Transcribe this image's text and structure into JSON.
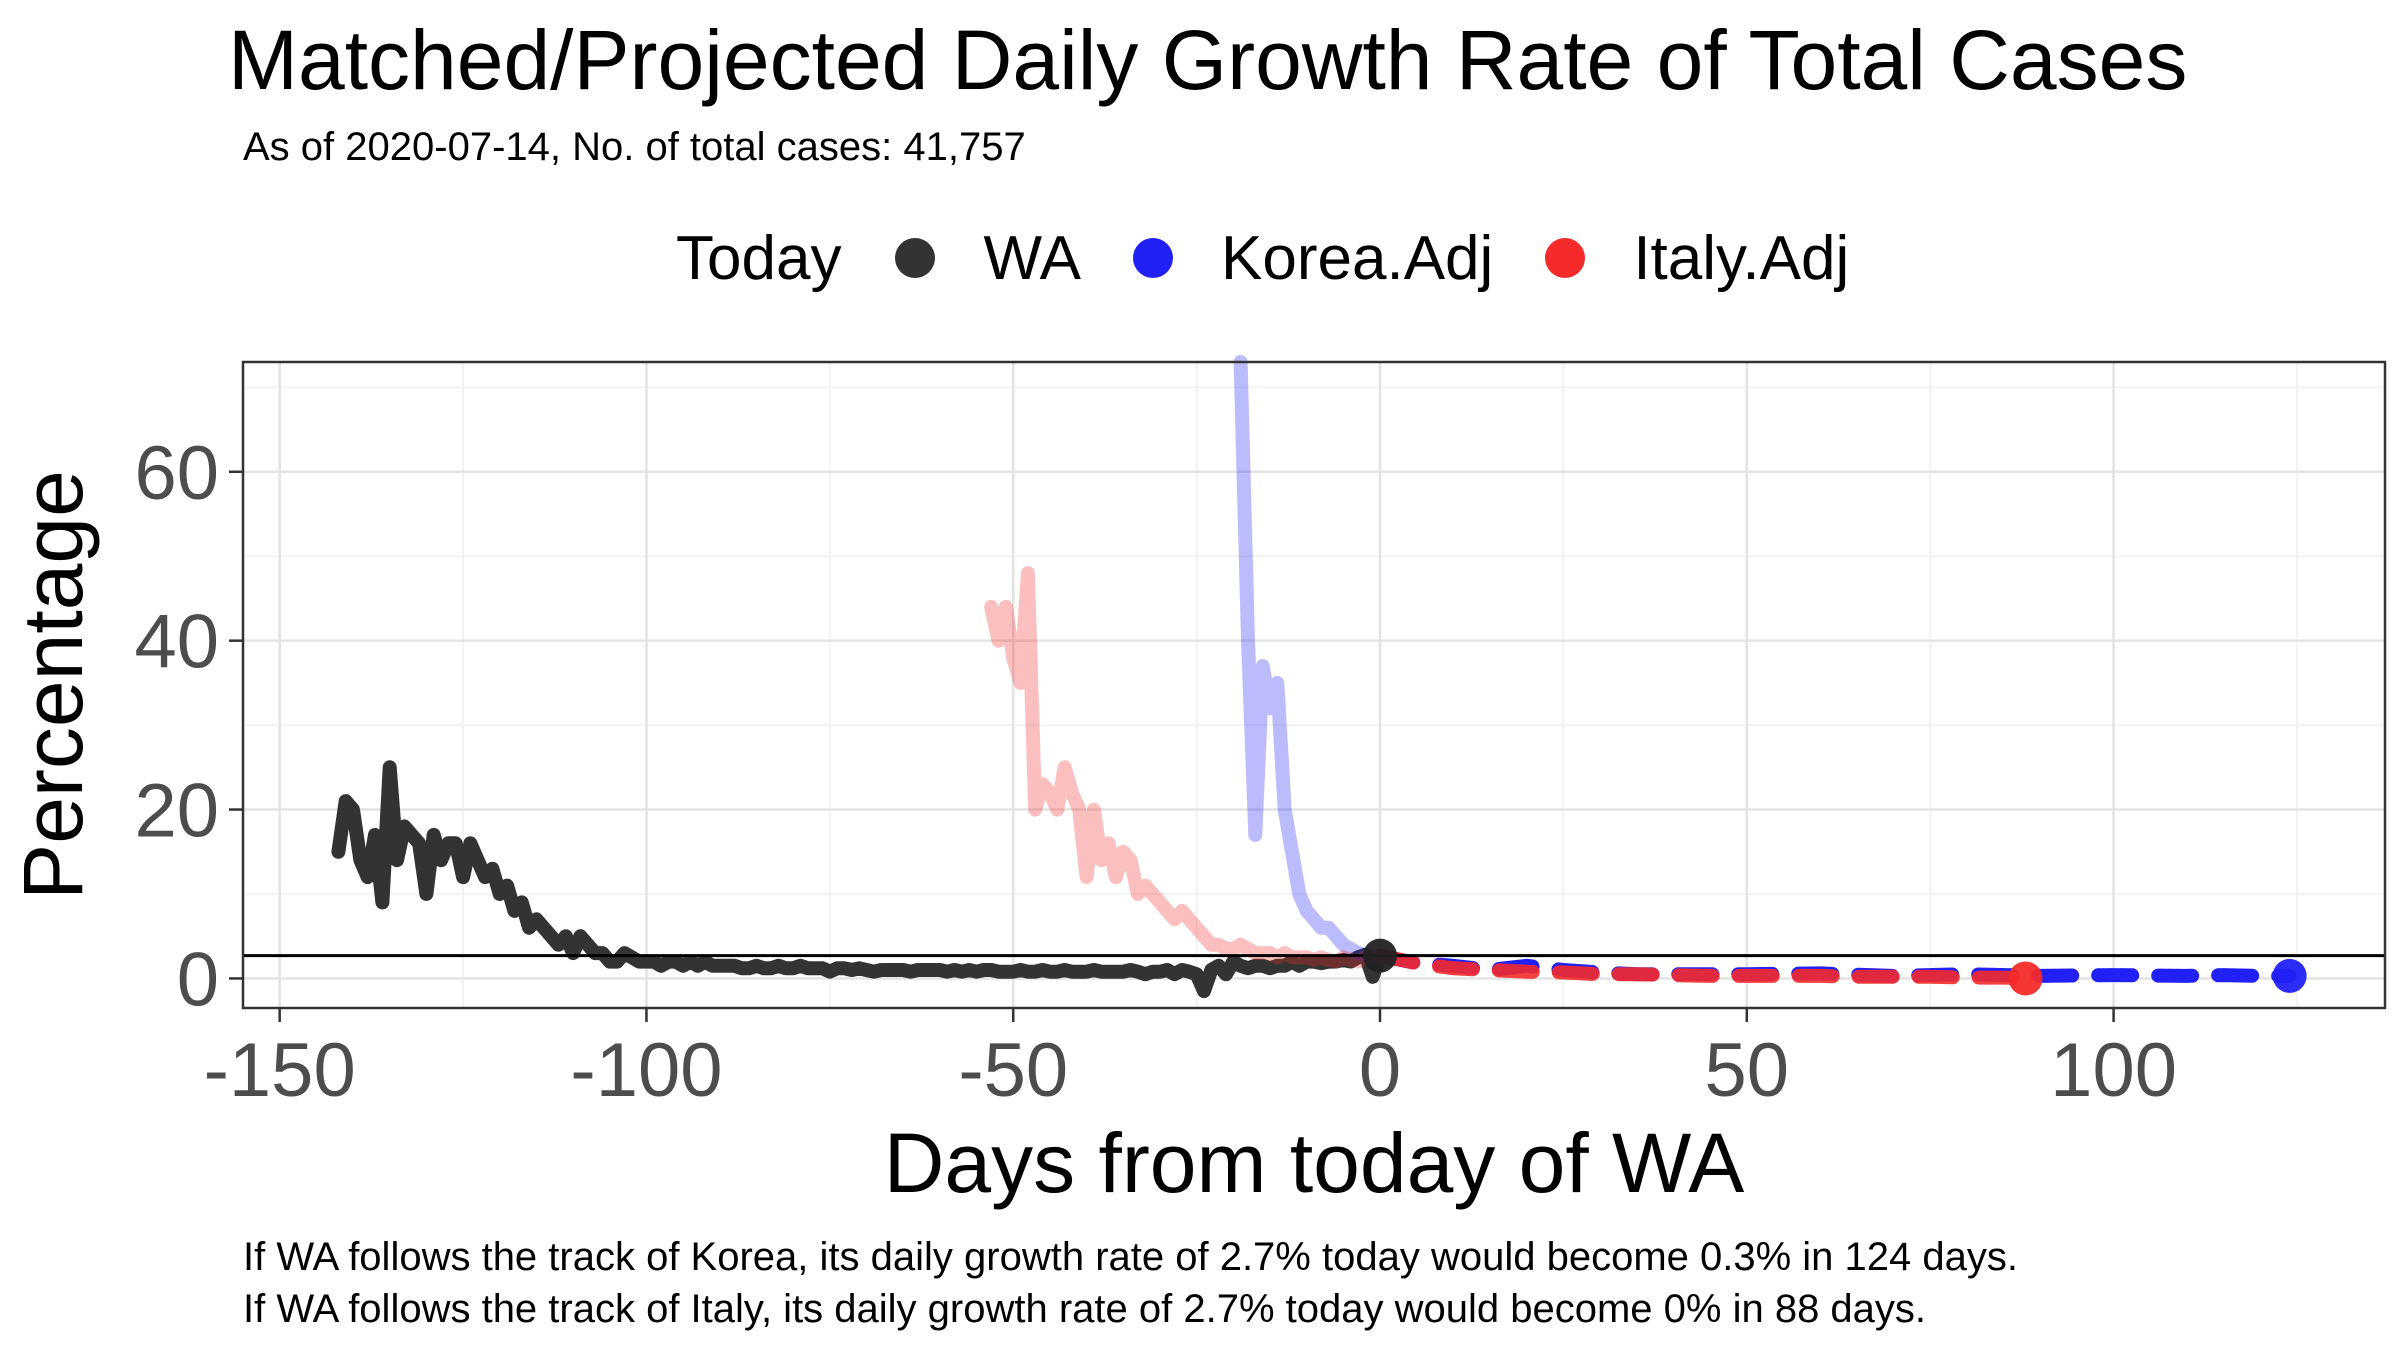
{
  "chart_data": {
    "type": "line",
    "title": "Matched/Projected Daily Growth Rate of Total Cases",
    "subtitle": "As of 2020-07-14, No. of total cases: 41,757",
    "xlabel": "Days from today of WA",
    "ylabel": "Percentage",
    "xlim": [
      -155,
      137
    ],
    "ylim": [
      -3.5,
      73
    ],
    "x_ticks": [
      -150,
      -100,
      -50,
      0,
      50,
      100
    ],
    "x_tick_labels": [
      "-150",
      "-100",
      "-50",
      "0",
      "50",
      "100"
    ],
    "y_ticks": [
      0,
      20,
      40,
      60
    ],
    "y_tick_labels": [
      "0",
      "20",
      "40",
      "60"
    ],
    "grid": true,
    "legend": {
      "title": "Today",
      "position": "top",
      "items": [
        {
          "label": "WA",
          "color": "#333333"
        },
        {
          "label": "Korea.Adj",
          "color": "#2121f5"
        },
        {
          "label": "Italy.Adj",
          "color": "#f52a2a"
        }
      ]
    },
    "reference_line": {
      "y": 2.7
    },
    "series": [
      {
        "name": "WA",
        "color": "#333333",
        "opacity": 1.0,
        "x": [
          -142,
          -141,
          -140,
          -139,
          -138,
          -137,
          -136,
          -135,
          -134,
          -133,
          -132,
          -131,
          -130,
          -129,
          -128,
          -127,
          -126,
          -125,
          -124,
          -123,
          -122,
          -121,
          -120,
          -119,
          -118,
          -117,
          -116,
          -115,
          -114,
          -113,
          -112,
          -111,
          -110,
          -109,
          -108,
          -107,
          -106,
          -105,
          -104,
          -103,
          -102,
          -101,
          -100,
          -99,
          -98,
          -97,
          -96,
          -95,
          -94,
          -93,
          -92,
          -91,
          -90,
          -89,
          -88,
          -87,
          -86,
          -85,
          -84,
          -83,
          -82,
          -81,
          -80,
          -79,
          -78,
          -77,
          -76,
          -75,
          -74,
          -73,
          -72,
          -71,
          -70,
          -69,
          -68,
          -67,
          -66,
          -65,
          -64,
          -63,
          -62,
          -61,
          -60,
          -59,
          -58,
          -57,
          -56,
          -55,
          -54,
          -53,
          -52,
          -51,
          -50,
          -49,
          -48,
          -47,
          -46,
          -45,
          -44,
          -43,
          -42,
          -41,
          -40,
          -39,
          -38,
          -37,
          -36,
          -35,
          -34,
          -33,
          -32,
          -31,
          -30,
          -29,
          -28,
          -27,
          -26,
          -25,
          -24,
          -23,
          -22,
          -21,
          -20,
          -19,
          -18,
          -17,
          -16,
          -15,
          -14,
          -13,
          -12,
          -11,
          -10,
          -9,
          -8,
          -7,
          -6,
          -5,
          -4,
          -3,
          -2,
          -1,
          0
        ],
        "values": [
          15,
          21,
          20,
          14,
          12,
          17,
          9,
          25,
          14,
          18,
          17,
          16,
          10,
          17,
          14,
          16,
          16,
          12,
          16,
          14,
          12,
          13,
          10,
          11,
          8,
          9,
          6,
          7,
          6,
          5,
          4,
          5,
          3,
          5,
          4,
          3,
          3,
          2,
          2,
          3,
          2.5,
          2,
          2,
          2,
          1.5,
          2,
          2,
          1.5,
          2,
          1.5,
          2,
          1.5,
          1.5,
          1.5,
          1.5,
          1.2,
          1.2,
          1.5,
          1.2,
          1.2,
          1.5,
          1.2,
          1.2,
          1.5,
          1.2,
          1.2,
          1.2,
          0.8,
          1.2,
          1.2,
          1,
          1.2,
          1,
          0.8,
          1,
          1,
          1,
          1,
          0.8,
          1,
          1,
          1,
          1,
          0.8,
          1,
          0.8,
          1,
          0.8,
          1,
          1,
          0.8,
          0.8,
          0.8,
          1,
          0.8,
          0.8,
          1,
          0.8,
          0.8,
          1,
          0.8,
          0.8,
          0.8,
          1,
          0.8,
          0.8,
          0.8,
          0.8,
          1,
          0.8,
          0.5,
          0.8,
          0.8,
          1,
          0.5,
          1,
          0.8,
          0.5,
          -1.5,
          1,
          1.5,
          0.5,
          2,
          1.5,
          1.2,
          1.5,
          1.5,
          1.2,
          1.5,
          1.5,
          2,
          1.5,
          2,
          2,
          1.8,
          2,
          2,
          2.2,
          2,
          2.5,
          2.8,
          0.2,
          2.7
        ]
      },
      {
        "name": "Korea.Adj (matched)",
        "color": "#2121f5",
        "opacity": 0.3,
        "x": [
          -19,
          -18,
          -17,
          -16,
          -15,
          -14,
          -13,
          -12,
          -11,
          -10,
          -9,
          -8,
          -7,
          -6,
          -5,
          -4,
          -3,
          -2,
          -1,
          0
        ],
        "values": [
          73,
          40,
          17,
          37,
          32,
          35,
          20,
          15,
          10,
          8,
          7,
          6,
          6,
          5,
          4,
          3.5,
          3,
          2.8,
          2.5,
          2.7
        ]
      },
      {
        "name": "Italy.Adj (matched)",
        "color": "#f52a2a",
        "opacity": 0.3,
        "x": [
          -53,
          -52,
          -51,
          -50,
          -49,
          -48,
          -47,
          -46,
          -45,
          -44,
          -43,
          -42,
          -41,
          -40,
          -39,
          -38,
          -37,
          -36,
          -35,
          -34,
          -33,
          -32,
          -31,
          -30,
          -29,
          -28,
          -27,
          -26,
          -25,
          -24,
          -23,
          -22,
          -21,
          -20,
          -19,
          -18,
          -17,
          -16,
          -15,
          -14,
          -13,
          -12,
          -11,
          -10,
          -9,
          -8,
          -7,
          -6,
          -5,
          -4,
          -3,
          -2,
          -1,
          0
        ],
        "values": [
          44,
          40,
          44,
          38,
          35,
          48,
          20,
          23,
          22,
          20,
          25,
          22,
          20,
          12,
          20,
          14,
          16,
          12,
          15,
          14,
          10,
          11,
          10,
          9,
          8,
          7,
          8,
          7,
          6,
          5,
          4,
          4,
          3.5,
          3.5,
          4,
          3.5,
          3,
          3,
          3,
          2.5,
          3,
          2.5,
          2.5,
          2.5,
          2.2,
          2.5,
          2.2,
          2,
          2.5,
          2.2,
          2,
          2.5,
          2.7,
          2.7
        ]
      },
      {
        "name": "Korea.Adj (projected)",
        "color": "#2121f5",
        "opacity": 1.0,
        "style": "dashed",
        "x": [
          0,
          5,
          10,
          15,
          20,
          25,
          30,
          35,
          40,
          50,
          60,
          70,
          80,
          90,
          100,
          110,
          115,
          120,
          124
        ],
        "values": [
          2.7,
          1.8,
          1.5,
          1,
          1.5,
          1,
          0.7,
          0.5,
          0.5,
          0.5,
          0.6,
          0.3,
          0.5,
          0.3,
          0.4,
          0.3,
          0.4,
          0.3,
          0.3
        ]
      },
      {
        "name": "Italy.Adj (projected)",
        "color": "#f52a2a",
        "opacity": 0.9,
        "style": "dashed",
        "x": [
          0,
          5,
          10,
          15,
          20,
          25,
          30,
          35,
          40,
          45,
          50,
          55,
          60,
          65,
          70,
          75,
          80,
          85,
          88
        ],
        "values": [
          2.7,
          1.8,
          1.2,
          1,
          0.8,
          0.7,
          0.5,
          0.5,
          0.4,
          0.3,
          0.3,
          0.3,
          0.3,
          0.2,
          0.2,
          0.2,
          0.1,
          0.1,
          0
        ]
      }
    ],
    "today_points": [
      {
        "series": "WA",
        "x": 0,
        "y": 2.7,
        "color": "#222222"
      },
      {
        "series": "Korea.Adj",
        "x": 124,
        "y": 0.3,
        "color": "#2121f5"
      },
      {
        "series": "Italy.Adj",
        "x": 88,
        "y": 0,
        "color": "#f52a2a"
      }
    ]
  },
  "captions": {
    "line1": "If WA follows the track of Korea, its daily growth rate of 2.7% today would become 0.3% in 124 days.",
    "line2": "If WA follows the track of Italy, its daily growth rate of 2.7% today would become 0% in 88 days."
  }
}
